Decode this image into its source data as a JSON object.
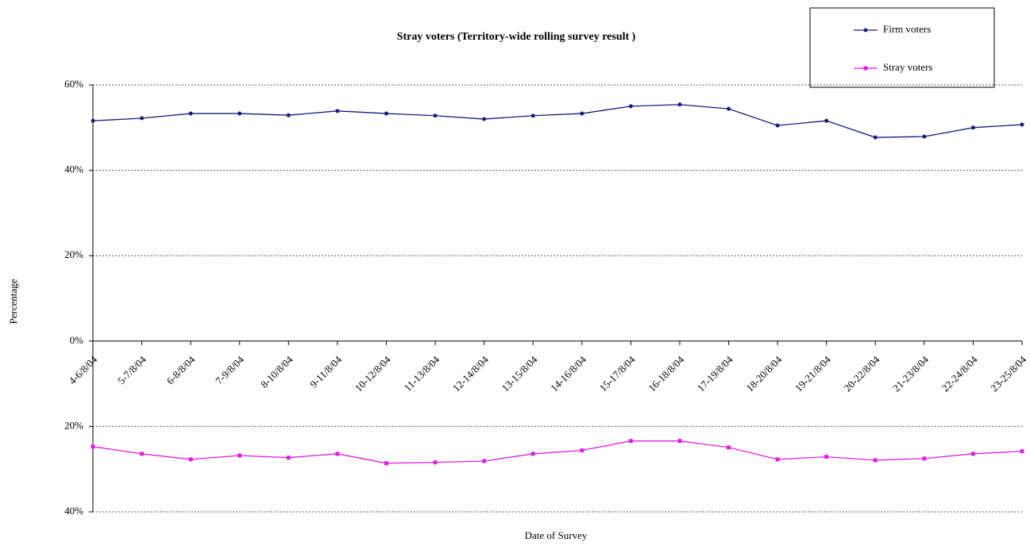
{
  "chart_data": {
    "type": "line",
    "title": "Stray voters (Territory-wide rolling survey result )",
    "x_label": "Date of Survey",
    "y_label": "Percentage",
    "categories": [
      "4-6/8/04",
      "5-7/8/04",
      "6-8/8/04",
      "7-9/8/04",
      "8-10/8/04",
      "9-11/8/04",
      "10-12/8/04",
      "11-13/8/04",
      "12-14/8/04",
      "13-15/8/04",
      "14-16/8/04",
      "15-17/8/04",
      "16-18/8/04",
      "17-19/8/04",
      "18-20/8/04",
      "19-21/8/04",
      "20-22/8/04",
      "21-23/8/04",
      "22-24/8/04",
      "23-25/8/04"
    ],
    "series": [
      {
        "name": "Firm voters",
        "color": "#1a1a7a",
        "values": [
          51.6,
          52.2,
          53.3,
          53.3,
          52.9,
          53.9,
          53.3,
          52.8,
          52.0,
          52.8,
          53.3,
          55.0,
          55.4,
          54.4,
          50.5,
          51.6,
          47.7,
          47.9,
          50.0,
          50.7
        ]
      },
      {
        "name": "Stray voters",
        "color": "#e020e0",
        "values": [
          -24.7,
          -26.4,
          -27.7,
          -26.8,
          -27.3,
          -26.4,
          -28.6,
          -28.4,
          -28.1,
          -26.4,
          -25.6,
          -23.4,
          -23.4,
          -24.9,
          -27.7,
          -27.1,
          -27.9,
          -27.5,
          -26.4,
          -25.8
        ]
      }
    ],
    "ylim": [
      -40,
      60
    ],
    "yticks": [
      {
        "value": -40,
        "label": "40%"
      },
      {
        "value": -20,
        "label": "20%"
      },
      {
        "value": 0,
        "label": "0%"
      },
      {
        "value": 20,
        "label": "20%"
      },
      {
        "value": 40,
        "label": "40%"
      },
      {
        "value": 60,
        "label": "60%"
      }
    ],
    "grid": true,
    "legend": "top-right"
  }
}
